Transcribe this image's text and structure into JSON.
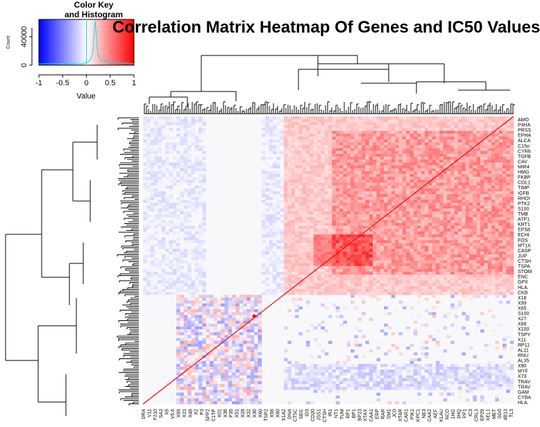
{
  "chart_data": {
    "type": "heatmap",
    "title": "Correlation Matrix Heatmap Of Genes and IC50 Values",
    "color_key": {
      "title_line1": "Color Key",
      "title_line2": "and Histogram",
      "xlabel": "Value",
      "ylabel": "Count",
      "x_ticks": [
        "-1",
        "-0.5",
        "0",
        "0.5",
        "1"
      ],
      "y_ticks": [
        "0",
        "40000"
      ],
      "range": [
        -1,
        1
      ],
      "colors": {
        "low": "#0000ff",
        "mid": "#ffffff",
        "high": "#ff0000",
        "histogram": "#00e5ee"
      }
    },
    "row_labels": [
      "AMO",
      "P4HA",
      "PRSS",
      "EPHA",
      "ALCA",
      "C15o",
      "CYR6",
      "TGFB",
      "CAV",
      "MIR4",
      "HMG",
      "FKBP",
      "COL1",
      "TIMP",
      "IGFB",
      "RHOI",
      "PTK2",
      "S100",
      "TMB",
      "ATP1",
      "KRT1",
      "EPS8",
      "ECHI",
      "FOS",
      "MT1X",
      "CASP",
      "JUP",
      "CTSH",
      "TSPA",
      "STOM",
      "ENC",
      "GPX",
      "HLA.",
      "CKB",
      "X18",
      "X99",
      "X65",
      "S100",
      "X27",
      "X68",
      "X100",
      "TSPY",
      "X11",
      "RP11",
      "AL11",
      "RNU",
      "AL35",
      "X90",
      "MYF",
      "X73",
      "TRAV",
      "TRAV",
      "GAM",
      "CYBA",
      "HLA."
    ],
    "col_labels": [
      "DRA",
      "V11",
      "F210",
      "SA3",
      "X6",
      "V5.6",
      "X69",
      "X21",
      "X48",
      "X2",
      "P3",
      "SPP2",
      "C1TP",
      "X01",
      "X36",
      "P35",
      "X51",
      "X28",
      "X32",
      "X30",
      "X60",
      "TSP2",
      "X56",
      "X60",
      "X1A2",
      "DNA",
      "CT5C",
      "SEG",
      "ID3",
      "CD20",
      "JSS1",
      "CTSH",
      "IR1",
      "NT1",
      "TUM",
      "RP1",
      "BP1",
      "BP23",
      "XTAX",
      "CAA1",
      "ERP",
      "RAR",
      "SM1",
      "JC0",
      "XTAR",
      "CAR1",
      "PIK1",
      "KPC1",
      "NE3",
      "CAA2",
      "AEF",
      "KLAU",
      "NCO",
      "1HG",
      "3HQ",
      "PP1",
      "IC3",
      "CRL3",
      "EP29",
      "XEL1",
      "MET",
      "SG0",
      "4B13",
      "TL3"
    ]
  }
}
